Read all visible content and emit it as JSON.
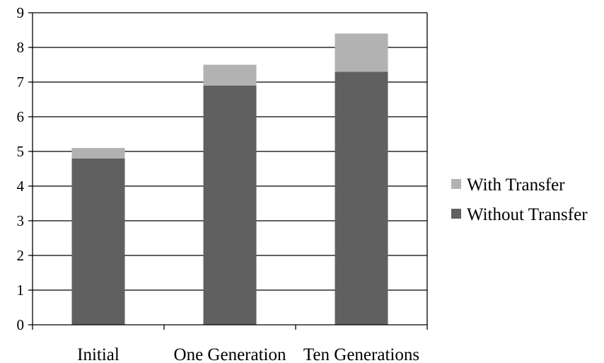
{
  "chart_data": {
    "type": "bar",
    "stacked": true,
    "categories": [
      "Initial",
      "One Generation",
      "Ten Generations"
    ],
    "series": [
      {
        "name": "Without Transfer",
        "values": [
          4.8,
          6.9,
          7.3
        ],
        "color": "#606060"
      },
      {
        "name": "With Transfer",
        "values": [
          0.3,
          0.6,
          1.1
        ],
        "color": "#b2b2b2"
      }
    ],
    "totals": [
      5.1,
      7.5,
      8.4
    ],
    "title": "",
    "xlabel": "",
    "ylabel": "",
    "ylim": [
      0,
      9
    ],
    "yticks": [
      "0",
      "1",
      "2",
      "3",
      "4",
      "5",
      "6",
      "7",
      "8",
      "9"
    ],
    "grid": true,
    "legend": {
      "position": "right",
      "items": [
        "With Transfer",
        "Without Transfer"
      ]
    }
  }
}
